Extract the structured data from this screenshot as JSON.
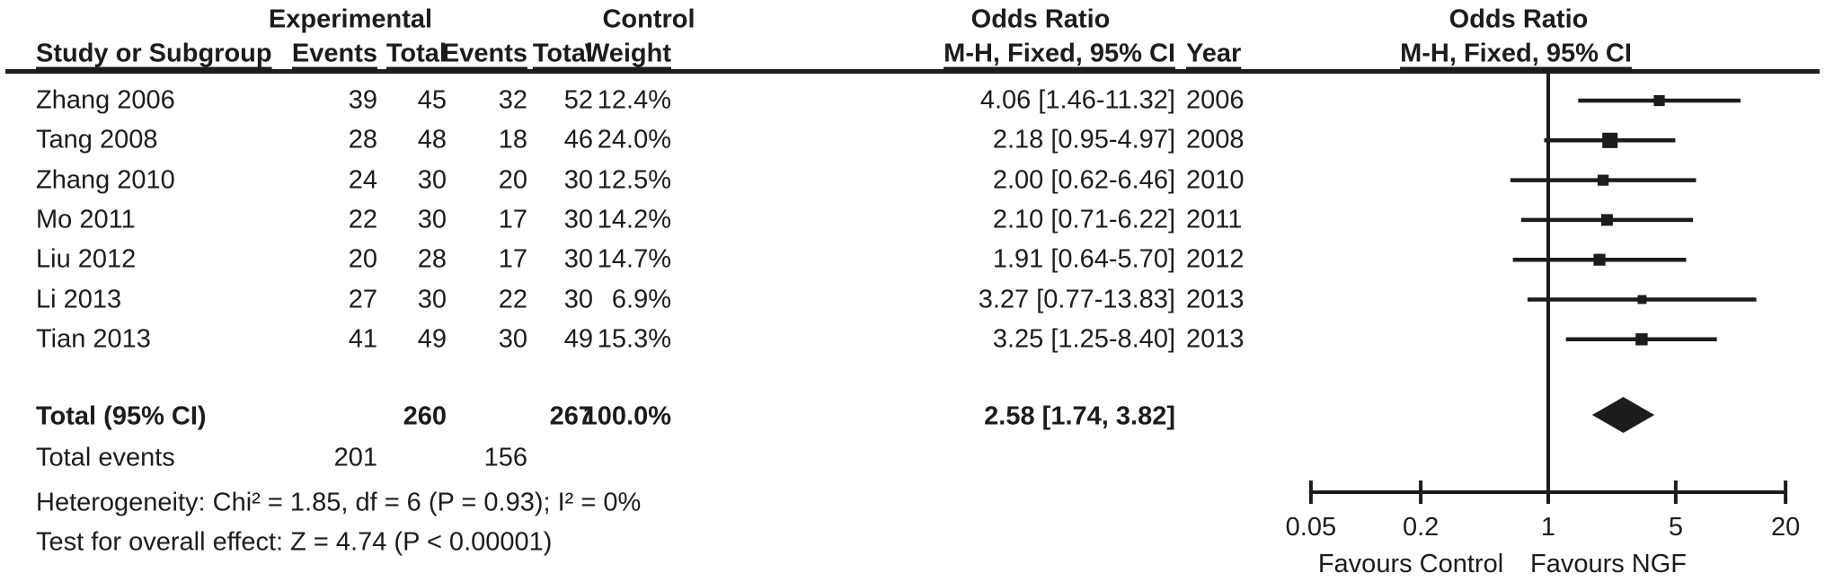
{
  "table": {
    "group_headers": {
      "experimental": "Experimental",
      "control": "Control",
      "odds_ratio": "Odds Ratio"
    },
    "column_headers": {
      "study": "Study or Subgroup",
      "exp_events": "Events",
      "exp_total": "Total",
      "ctl_events": "Events",
      "ctl_total": "Total",
      "weight": "Weight",
      "or_ci": "M-H, Fixed, 95% CI",
      "year": "Year"
    },
    "plot_headers": {
      "title": "Odds Ratio",
      "subtitle": "M-H, Fixed, 95% CI"
    }
  },
  "totals_row": {
    "label": "Total (95% CI)",
    "exp_total": "260",
    "ctl_total": "267",
    "weight": "100.0%",
    "or_ci": "2.58 [1.74, 3.82]"
  },
  "total_events_row": {
    "label": "Total events",
    "exp_events": "201",
    "ctl_events": "156"
  },
  "footnotes": {
    "heterogeneity": "Heterogeneity: Chi² = 1.85, df = 6 (P = 0.93); I² = 0%",
    "overall_effect": "Test for overall effect: Z = 4.74 (P < 0.00001)"
  },
  "chart_data": {
    "type": "forest",
    "effect_measure": "Odds Ratio",
    "model": "M-H, Fixed, 95% CI",
    "x_scale": "log",
    "x_ticks": [
      0.05,
      0.2,
      1,
      5,
      20
    ],
    "x_tick_labels": [
      "0.05",
      "0.2",
      "1",
      "5",
      "20"
    ],
    "x_range": [
      0.05,
      20
    ],
    "null_value": 1,
    "favours_left": "Favours Control",
    "favours_right": "Favours NGF",
    "studies": [
      {
        "name": "Zhang 2006",
        "exp_events": 39,
        "exp_total": 45,
        "ctl_events": 32,
        "ctl_total": 52,
        "weight": "12.4%",
        "weight_value": 12.4,
        "or": 4.06,
        "ci_low": 1.46,
        "ci_high": 11.32,
        "or_ci": "4.06 [1.46-11.32]",
        "year": "2006"
      },
      {
        "name": "Tang 2008",
        "exp_events": 28,
        "exp_total": 48,
        "ctl_events": 18,
        "ctl_total": 46,
        "weight": "24.0%",
        "weight_value": 24.0,
        "or": 2.18,
        "ci_low": 0.95,
        "ci_high": 4.97,
        "or_ci": "2.18 [0.95-4.97]",
        "year": "2008"
      },
      {
        "name": "Zhang 2010",
        "exp_events": 24,
        "exp_total": 30,
        "ctl_events": 20,
        "ctl_total": 30,
        "weight": "12.5%",
        "weight_value": 12.5,
        "or": 2.0,
        "ci_low": 0.62,
        "ci_high": 6.46,
        "or_ci": "2.00 [0.62-6.46]",
        "year": "2010"
      },
      {
        "name": "Mo 2011",
        "exp_events": 22,
        "exp_total": 30,
        "ctl_events": 17,
        "ctl_total": 30,
        "weight": "14.2%",
        "weight_value": 14.2,
        "or": 2.1,
        "ci_low": 0.71,
        "ci_high": 6.22,
        "or_ci": "2.10 [0.71-6.22]",
        "year": "2011"
      },
      {
        "name": "Liu 2012",
        "exp_events": 20,
        "exp_total": 28,
        "ctl_events": 17,
        "ctl_total": 30,
        "weight": "14.7%",
        "weight_value": 14.7,
        "or": 1.91,
        "ci_low": 0.64,
        "ci_high": 5.7,
        "or_ci": "1.91 [0.64-5.70]",
        "year": "2012"
      },
      {
        "name": "Li 2013",
        "exp_events": 27,
        "exp_total": 30,
        "ctl_events": 22,
        "ctl_total": 30,
        "weight": "6.9%",
        "weight_value": 6.9,
        "or": 3.27,
        "ci_low": 0.77,
        "ci_high": 13.83,
        "or_ci": "3.27 [0.77-13.83]",
        "year": "2013"
      },
      {
        "name": "Tian 2013",
        "exp_events": 41,
        "exp_total": 49,
        "ctl_events": 30,
        "ctl_total": 49,
        "weight": "15.3%",
        "weight_value": 15.3,
        "or": 3.25,
        "ci_low": 1.25,
        "ci_high": 8.4,
        "or_ci": "3.25 [1.25-8.40]",
        "year": "2013"
      }
    ],
    "total": {
      "or": 2.58,
      "ci_low": 1.74,
      "ci_high": 3.82
    }
  },
  "colors": {
    "ink": "#1c1c1c",
    "background": "#ffffff"
  }
}
